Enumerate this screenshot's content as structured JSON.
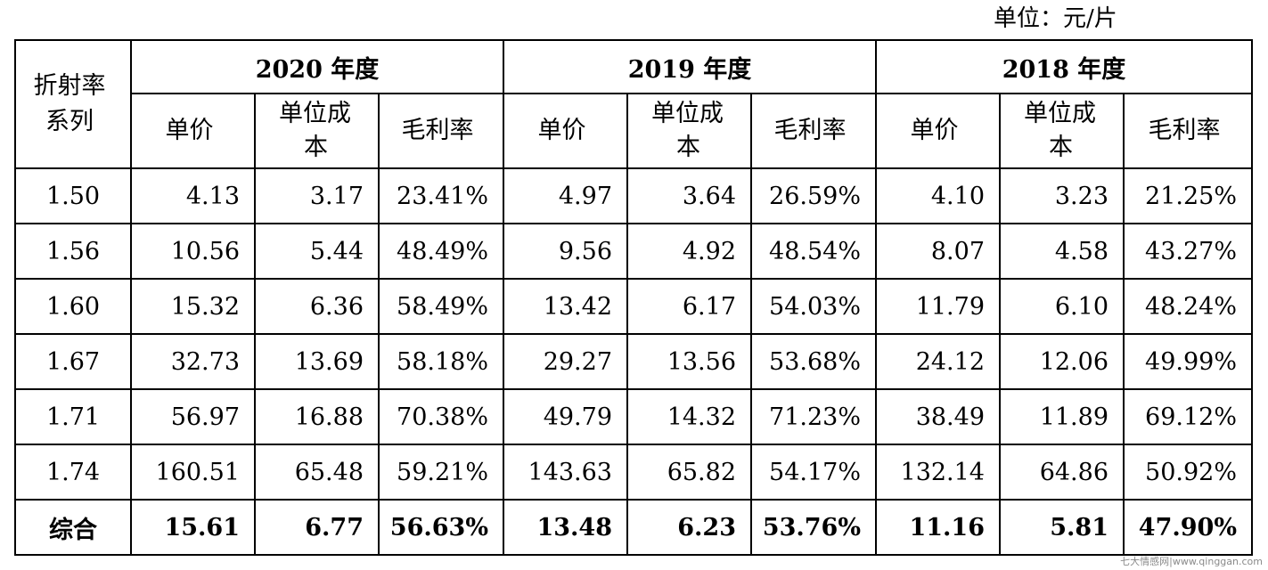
{
  "unit_label": "单位：元/片",
  "table": {
    "series_header": "折射率系列",
    "years": [
      "2020 年度",
      "2019 年度",
      "2018 年度"
    ],
    "sub_headers": [
      "单价",
      "单位成本",
      "毛利率"
    ],
    "rows": [
      {
        "series": "1.50",
        "values": [
          "4.13",
          "3.17",
          "23.41%",
          "4.97",
          "3.64",
          "26.59%",
          "4.10",
          "3.23",
          "21.25%"
        ]
      },
      {
        "series": "1.56",
        "values": [
          "10.56",
          "5.44",
          "48.49%",
          "9.56",
          "4.92",
          "48.54%",
          "8.07",
          "4.58",
          "43.27%"
        ]
      },
      {
        "series": "1.60",
        "values": [
          "15.32",
          "6.36",
          "58.49%",
          "13.42",
          "6.17",
          "54.03%",
          "11.79",
          "6.10",
          "48.24%"
        ]
      },
      {
        "series": "1.67",
        "values": [
          "32.73",
          "13.69",
          "58.18%",
          "29.27",
          "13.56",
          "53.68%",
          "24.12",
          "12.06",
          "49.99%"
        ]
      },
      {
        "series": "1.71",
        "values": [
          "56.97",
          "16.88",
          "70.38%",
          "49.79",
          "14.32",
          "71.23%",
          "38.49",
          "11.89",
          "69.12%"
        ]
      },
      {
        "series": "1.74",
        "values": [
          "160.51",
          "65.48",
          "59.21%",
          "143.63",
          "65.82",
          "54.17%",
          "132.14",
          "64.86",
          "50.92%"
        ]
      }
    ],
    "total": {
      "series": "综合",
      "values": [
        "15.61",
        "6.77",
        "56.63%",
        "13.48",
        "6.23",
        "53.76%",
        "11.16",
        "5.81",
        "47.90%"
      ]
    }
  },
  "watermark": "七大情感网|www.qinggan.com"
}
